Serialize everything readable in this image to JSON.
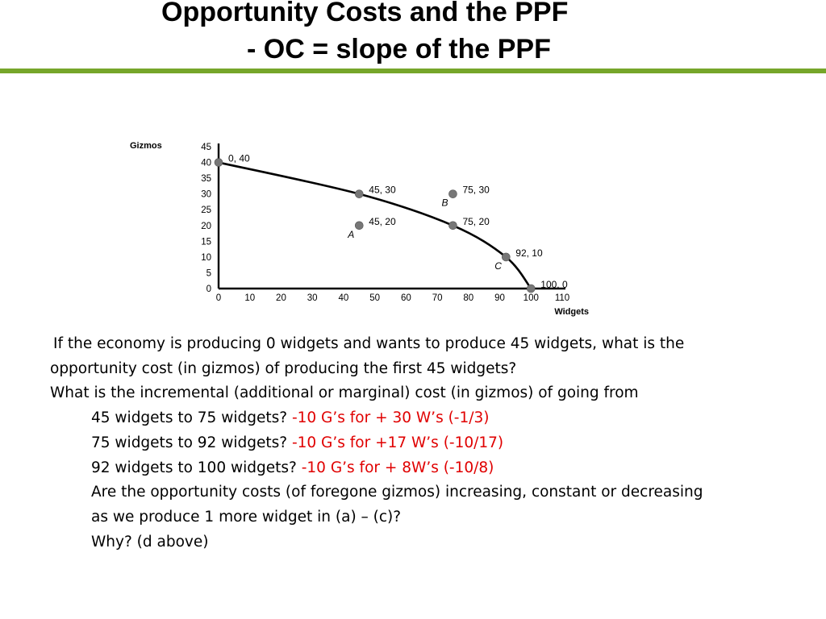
{
  "slide": {
    "title_line1": "Opportunity Costs and the PPF",
    "title_line2": "- OC = slope of the PPF",
    "accent_color": "#76a62a"
  },
  "chart_data": {
    "type": "line",
    "ylabel": "Gizmos",
    "xlabel": "Widgets",
    "xlim": [
      0,
      110
    ],
    "ylim": [
      0,
      45
    ],
    "x_ticks": [
      0,
      10,
      20,
      30,
      40,
      50,
      60,
      70,
      80,
      90,
      100,
      110
    ],
    "y_ticks": [
      0,
      5,
      10,
      15,
      20,
      25,
      30,
      35,
      40,
      45
    ],
    "frontier": {
      "x": [
        0,
        45,
        75,
        92,
        100
      ],
      "y": [
        40,
        30,
        20,
        10,
        0
      ]
    },
    "points": [
      {
        "x": 0,
        "y": 40,
        "label": "0, 40",
        "letter": ""
      },
      {
        "x": 45,
        "y": 30,
        "label": "45, 30",
        "letter": ""
      },
      {
        "x": 75,
        "y": 20,
        "label": "75, 20",
        "letter": ""
      },
      {
        "x": 92,
        "y": 10,
        "label": "92, 10",
        "letter": "C"
      },
      {
        "x": 100,
        "y": 0,
        "label": "100, 0",
        "letter": ""
      },
      {
        "x": 45,
        "y": 20,
        "label": "45, 20",
        "letter": "A"
      },
      {
        "x": 75,
        "y": 30,
        "label": "75, 30",
        "letter": "B"
      }
    ],
    "point_color": "#777777",
    "grid": false
  },
  "text": {
    "q1_line1": "If the economy is producing 0 widgets and wants to produce 45 widgets, what is the",
    "q1_line2": "opportunity cost (in gizmos) of producing the first 45 widgets?",
    "q2": "What is the incremental (additional or marginal) cost (in gizmos) of going from",
    "a": {
      "q": "45 widgets to 75 widgets?  ",
      "ans": "-10 G’s for + 30 W’s (-1/3)"
    },
    "b": {
      "q": "75 widgets to 92 widgets?  ",
      "ans": "-10 G’s for +17 W’s  (-10/17)"
    },
    "c": {
      "q": "92 widgets to 100 widgets?  ",
      "ans": "-10 G’s for + 8W’s  (-10/8)"
    },
    "d_line1": "Are the opportunity costs (of foregone gizmos) increasing, constant or decreasing",
    "d_line2": "as we produce 1 more widget in (a) – (c)?",
    "why": "Why?  (d above)",
    "answer_color": "#e00000"
  }
}
